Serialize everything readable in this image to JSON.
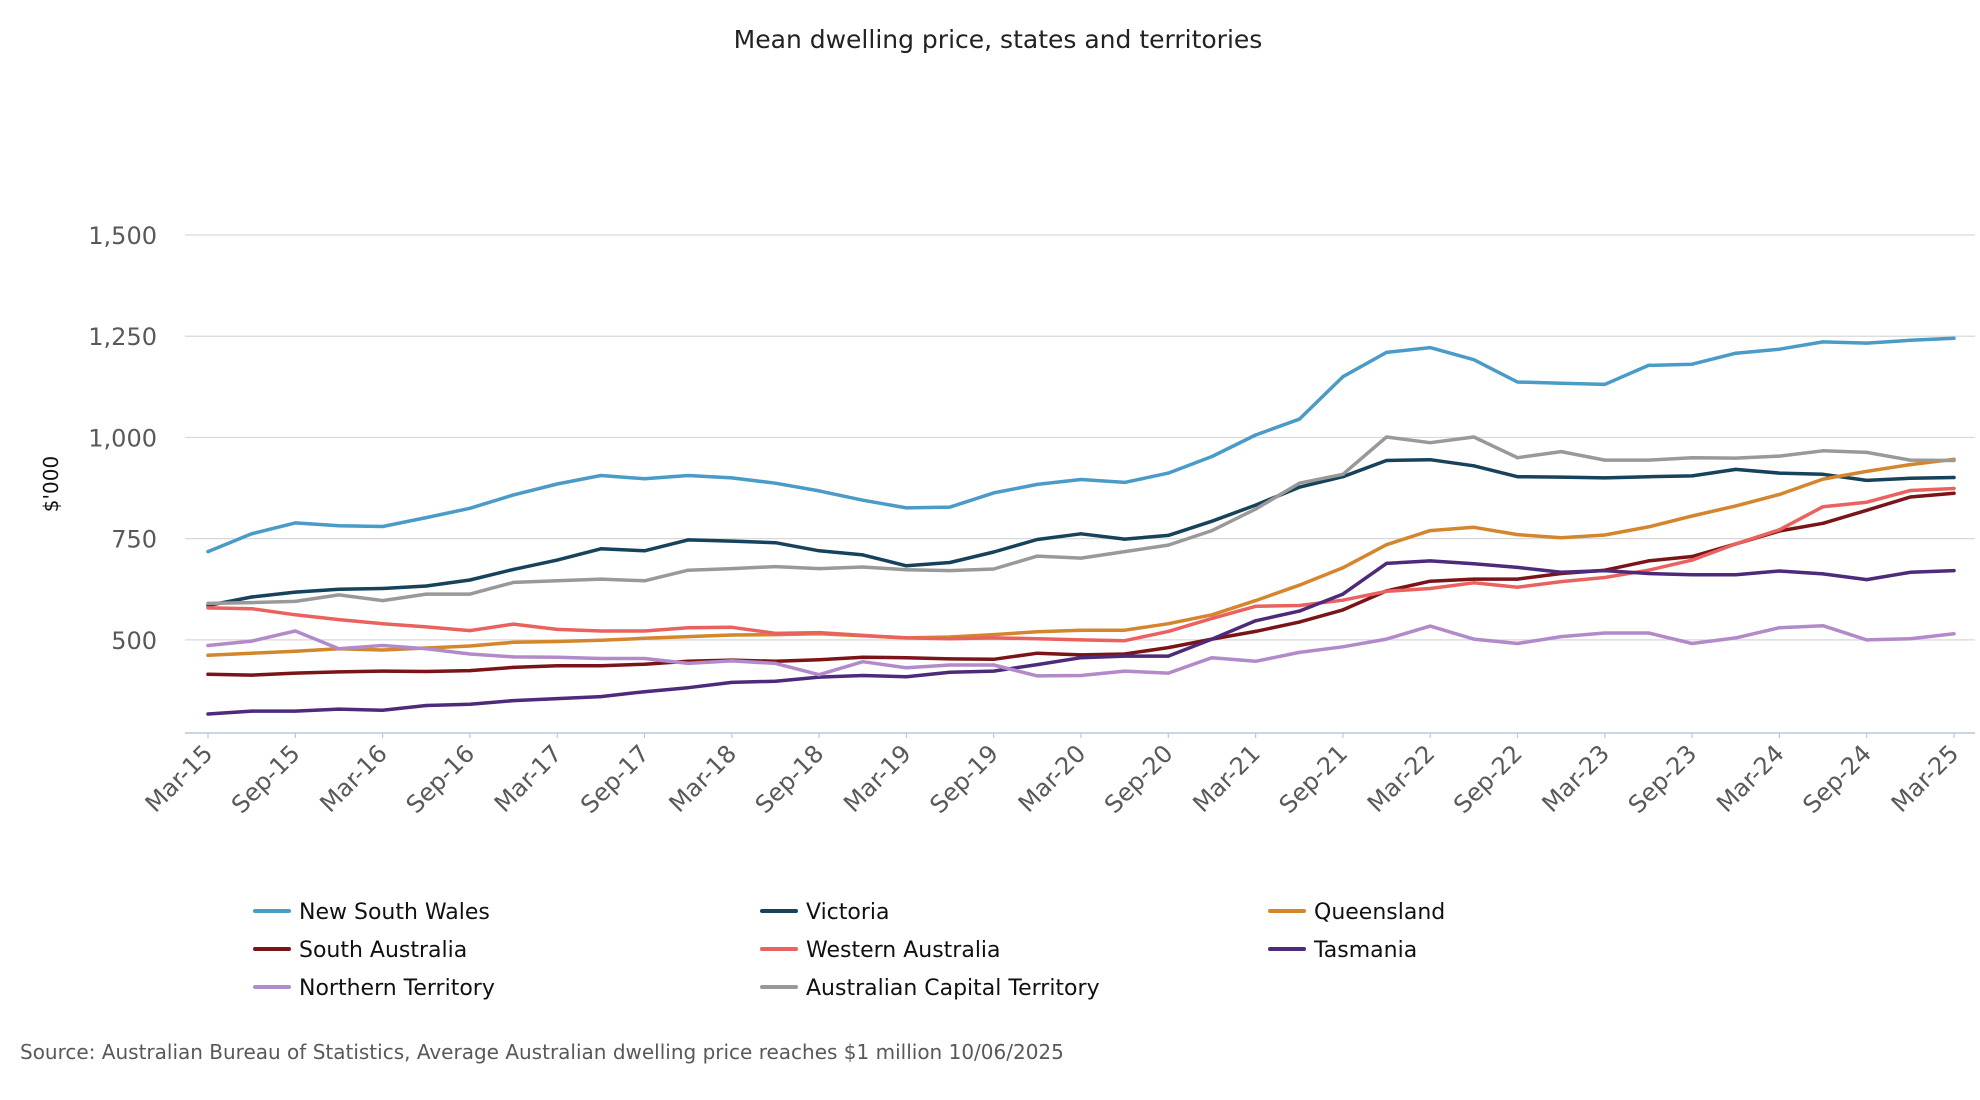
{
  "chart_data": {
    "type": "line",
    "title": "Mean dwelling price, states and territories",
    "xlabel": "",
    "ylabel": "$'000",
    "ylim": [
      270,
      1500
    ],
    "yticks": [
      500,
      750,
      1000,
      1250,
      1500
    ],
    "ytick_labels": [
      "500",
      "750",
      "1,000",
      "1,250",
      "1,500"
    ],
    "grid": true,
    "legend_position": "bottom",
    "x": [
      "Mar-15",
      "Jun-15",
      "Sep-15",
      "Dec-15",
      "Mar-16",
      "Jun-16",
      "Sep-16",
      "Dec-16",
      "Mar-17",
      "Jun-17",
      "Sep-17",
      "Dec-17",
      "Mar-18",
      "Jun-18",
      "Sep-18",
      "Dec-18",
      "Mar-19",
      "Jun-19",
      "Sep-19",
      "Dec-19",
      "Mar-20",
      "Jun-20",
      "Sep-20",
      "Dec-20",
      "Mar-21",
      "Jun-21",
      "Sep-21",
      "Dec-21",
      "Mar-22",
      "Jun-22",
      "Sep-22",
      "Dec-22",
      "Mar-23",
      "Jun-23",
      "Sep-23",
      "Dec-23",
      "Mar-24",
      "Jun-24",
      "Sep-24",
      "Dec-24",
      "Mar-25"
    ],
    "xtick_labels": [
      "Mar-15",
      "Sep-15",
      "Mar-16",
      "Sep-16",
      "Mar-17",
      "Sep-17",
      "Mar-18",
      "Sep-18",
      "Mar-19",
      "Sep-19",
      "Mar-20",
      "Sep-20",
      "Mar-21",
      "Sep-21",
      "Mar-22",
      "Sep-22",
      "Mar-23",
      "Sep-23",
      "Mar-24",
      "Sep-24",
      "Mar-25"
    ],
    "series": [
      {
        "name": "New South Wales",
        "color": "#4a9bc7",
        "values": [
          718,
          762,
          789,
          782,
          780,
          802,
          825,
          858,
          885,
          906,
          898,
          906,
          900,
          887,
          868,
          845,
          826,
          828,
          863,
          884,
          896,
          889,
          912,
          953,
          1006,
          1045,
          1150,
          1210,
          1222,
          1192,
          1137,
          1134,
          1131,
          1178,
          1181,
          1208,
          1218,
          1236,
          1233,
          1240,
          1245
        ]
      },
      {
        "name": "Victoria",
        "color": "#16425b",
        "values": [
          585,
          606,
          618,
          625,
          627,
          633,
          648,
          674,
          697,
          725,
          720,
          747,
          744,
          740,
          720,
          710,
          683,
          691,
          717,
          748,
          762,
          749,
          758,
          793,
          833,
          877,
          903,
          943,
          945,
          930,
          903,
          902,
          900,
          903,
          905,
          921,
          912,
          909,
          894,
          899,
          901
        ]
      },
      {
        "name": "Queensland",
        "color": "#d4862d",
        "values": [
          462,
          467,
          472,
          478,
          475,
          480,
          485,
          494,
          496,
          499,
          504,
          508,
          512,
          513,
          515,
          510,
          505,
          507,
          513,
          520,
          524,
          524,
          540,
          562,
          597,
          635,
          678,
          735,
          770,
          778,
          760,
          752,
          759,
          779,
          806,
          831,
          859,
          897,
          916,
          933,
          946
        ]
      },
      {
        "name": "South Australia",
        "color": "#7a1418",
        "values": [
          415,
          413,
          418,
          421,
          423,
          422,
          424,
          432,
          436,
          436,
          440,
          447,
          450,
          447,
          451,
          457,
          456,
          453,
          452,
          467,
          463,
          465,
          481,
          502,
          521,
          544,
          574,
          621,
          645,
          650,
          650,
          664,
          672,
          695,
          706,
          737,
          769,
          788,
          820,
          853,
          862
        ]
      },
      {
        "name": "Western Australia",
        "color": "#e9625f",
        "values": [
          579,
          577,
          562,
          550,
          540,
          532,
          523,
          539,
          526,
          522,
          522,
          530,
          531,
          516,
          518,
          511,
          505,
          503,
          505,
          503,
          500,
          498,
          521,
          553,
          583,
          585,
          598,
          620,
          627,
          641,
          630,
          644,
          654,
          672,
          697,
          737,
          772,
          829,
          840,
          869,
          874
        ]
      },
      {
        "name": "Tasmania",
        "color": "#4e2a7a",
        "values": [
          317,
          324,
          324,
          329,
          326,
          338,
          341,
          350,
          355,
          360,
          372,
          382,
          395,
          398,
          408,
          412,
          409,
          420,
          423,
          439,
          456,
          460,
          460,
          502,
          547,
          571,
          613,
          689,
          695,
          688,
          679,
          667,
          671,
          664,
          661,
          661,
          670,
          663,
          649,
          667,
          671
        ]
      },
      {
        "name": "Northern Territory",
        "color": "#b38ac9",
        "values": [
          486,
          497,
          522,
          478,
          486,
          478,
          465,
          458,
          457,
          454,
          454,
          442,
          448,
          442,
          414,
          446,
          431,
          438,
          438,
          411,
          412,
          423,
          418,
          456,
          447,
          469,
          483,
          502,
          534,
          502,
          491,
          508,
          517,
          517,
          491,
          505,
          530,
          535,
          500,
          503,
          515
        ]
      },
      {
        "name": "Australian Capital Territory",
        "color": "#999999",
        "values": [
          590,
          592,
          595,
          611,
          597,
          613,
          613,
          642,
          646,
          650,
          646,
          672,
          676,
          681,
          676,
          680,
          673,
          671,
          675,
          707,
          702,
          718,
          734,
          770,
          823,
          887,
          909,
          1001,
          987,
          1001,
          950,
          965,
          944,
          944,
          950,
          949,
          954,
          967,
          963,
          944,
          943
        ]
      }
    ]
  },
  "source_note": "Source: Australian Bureau of Statistics, Average Australian dwelling price reaches $1 million 10/06/2025"
}
